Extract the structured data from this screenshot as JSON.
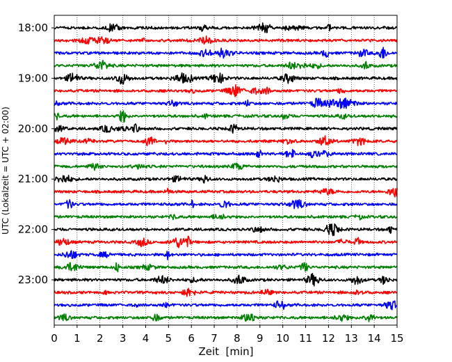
{
  "chart_data": {
    "type": "line",
    "title": "",
    "xlabel": "Zeit  [min]",
    "ylabel": "UTC (Lokalzeit = UTC + 02:00)",
    "xlim": [
      0,
      15
    ],
    "x_ticks": [
      "0",
      "1",
      "2",
      "3",
      "4",
      "5",
      "6",
      "7",
      "8",
      "9",
      "10",
      "11",
      "12",
      "13",
      "14",
      "15"
    ],
    "y_ticks": [
      {
        "label": "18:00",
        "row": 0
      },
      {
        "label": "19:00",
        "row": 4
      },
      {
        "label": "20:00",
        "row": 8
      },
      {
        "label": "21:00",
        "row": 12
      },
      {
        "label": "22:00",
        "row": 16
      },
      {
        "label": "23:00",
        "row": 20
      }
    ],
    "grid": {
      "x": "dotted",
      "y": false
    },
    "legend": "none",
    "trace_colors": [
      "#000000",
      "#ff0000",
      "#0000ff",
      "#008000"
    ],
    "traces_per_hour": 4,
    "minutes_per_trace": 15,
    "series": [
      {
        "start": "18:00",
        "color": "#000000"
      },
      {
        "start": "18:15",
        "color": "#ff0000"
      },
      {
        "start": "18:30",
        "color": "#0000ff"
      },
      {
        "start": "18:45",
        "color": "#008000"
      },
      {
        "start": "19:00",
        "color": "#000000"
      },
      {
        "start": "19:15",
        "color": "#ff0000"
      },
      {
        "start": "19:30",
        "color": "#0000ff"
      },
      {
        "start": "19:45",
        "color": "#008000"
      },
      {
        "start": "20:00",
        "color": "#000000"
      },
      {
        "start": "20:15",
        "color": "#ff0000"
      },
      {
        "start": "20:30",
        "color": "#0000ff"
      },
      {
        "start": "20:45",
        "color": "#008000"
      },
      {
        "start": "21:00",
        "color": "#000000"
      },
      {
        "start": "21:15",
        "color": "#ff0000"
      },
      {
        "start": "21:30",
        "color": "#0000ff"
      },
      {
        "start": "21:45",
        "color": "#008000"
      },
      {
        "start": "22:00",
        "color": "#000000"
      },
      {
        "start": "22:15",
        "color": "#ff0000"
      },
      {
        "start": "22:30",
        "color": "#0000ff"
      },
      {
        "start": "22:45",
        "color": "#008000"
      },
      {
        "start": "23:00",
        "color": "#000000"
      },
      {
        "start": "23:15",
        "color": "#ff0000"
      },
      {
        "start": "23:30",
        "color": "#0000ff"
      },
      {
        "start": "23:45",
        "color": "#008000"
      }
    ]
  }
}
